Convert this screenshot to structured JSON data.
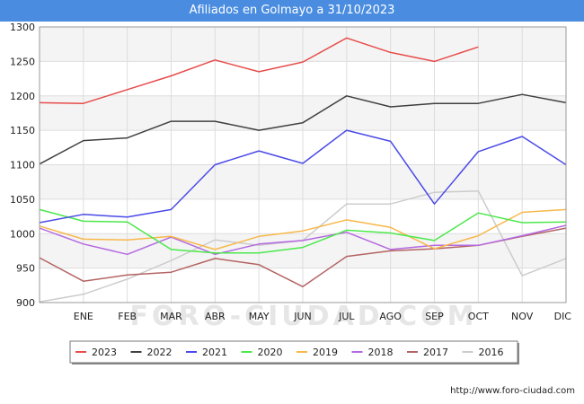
{
  "title": "Afiliados en Golmayo a 31/10/2023",
  "credit": "http://www.foro-ciudad.com",
  "watermark": "FORO-CIUDAD.COM",
  "chart_data": {
    "type": "line",
    "categories": [
      "",
      "ENE",
      "FEB",
      "MAR",
      "ABR",
      "MAY",
      "JUN",
      "JUL",
      "AGO",
      "SEP",
      "OCT",
      "NOV",
      "DIC"
    ],
    "yticks": [
      900,
      950,
      1000,
      1050,
      1100,
      1150,
      1200,
      1250,
      1300
    ],
    "ylim": [
      900,
      1300
    ],
    "grid": true,
    "legend_position": "bottom",
    "series": [
      {
        "name": "2023",
        "color": "#e84c4c",
        "values": [
          1190,
          1189,
          1209,
          1229,
          1252,
          1235,
          1249,
          1284,
          1263,
          1250,
          1271,
          null,
          null
        ]
      },
      {
        "name": "2022",
        "color": "#404040",
        "values": [
          1101,
          1135,
          1139,
          1163,
          1163,
          1150,
          1161,
          1200,
          1184,
          1189,
          1189,
          1202,
          1190
        ]
      },
      {
        "name": "2021",
        "color": "#4a4ae8",
        "values": [
          1016,
          1028,
          1024,
          1035,
          1100,
          1120,
          1102,
          1150,
          1134,
          1043,
          1119,
          1141,
          1100
        ]
      },
      {
        "name": "2020",
        "color": "#4ce84c",
        "values": [
          1035,
          1018,
          1017,
          977,
          972,
          972,
          980,
          1005,
          1001,
          990,
          1030,
          1016,
          1017
        ]
      },
      {
        "name": "2019",
        "color": "#f8b84a",
        "values": [
          1011,
          992,
          991,
          996,
          977,
          996,
          1004,
          1020,
          1009,
          978,
          997,
          1031,
          1035
        ]
      },
      {
        "name": "2018",
        "color": "#b468e0",
        "values": [
          1008,
          985,
          970,
          995,
          970,
          985,
          990,
          1002,
          977,
          983,
          983,
          997,
          1012
        ]
      },
      {
        "name": "2017",
        "color": "#b46464",
        "values": [
          965,
          931,
          940,
          944,
          964,
          955,
          923,
          967,
          975,
          978,
          983,
          996,
          1008
        ]
      },
      {
        "name": "2016",
        "color": "#cccccc",
        "values": [
          901,
          912,
          934,
          961,
          991,
          983,
          990,
          1043,
          1043,
          1060,
          1062,
          939,
          964
        ]
      }
    ]
  }
}
